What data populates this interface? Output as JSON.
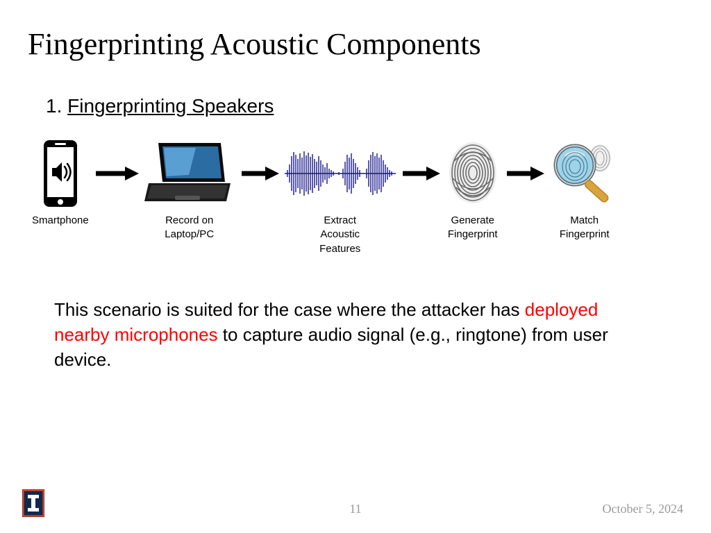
{
  "title": "Fingerprinting Acoustic Components",
  "subtitle_num": "1. ",
  "subtitle_label": "Fingerprinting Speakers",
  "flow": {
    "arrow_color": "#000000",
    "waveform_color": "#14148a",
    "stages": [
      {
        "label": "Smartphone"
      },
      {
        "label": "Record on\nLaptop/PC"
      },
      {
        "label": "Extract\nAcoustic\nFeatures"
      },
      {
        "label": "Generate\nFingerprint"
      },
      {
        "label": "Match\nFingerprint"
      }
    ]
  },
  "body": {
    "pre": "This scenario is suited for the case where the attacker has ",
    "highlight": "deployed nearby microphones",
    "post": " to capture audio signal (e.g., ringtone) from user device."
  },
  "footer": {
    "page": "11",
    "date": "October 5, 2024",
    "logo_bg": "#13294b",
    "logo_border": "#e84a27"
  },
  "colors": {
    "text": "#000000",
    "highlight": "#ff0000",
    "muted": "#9a9a9a",
    "background": "#ffffff"
  }
}
